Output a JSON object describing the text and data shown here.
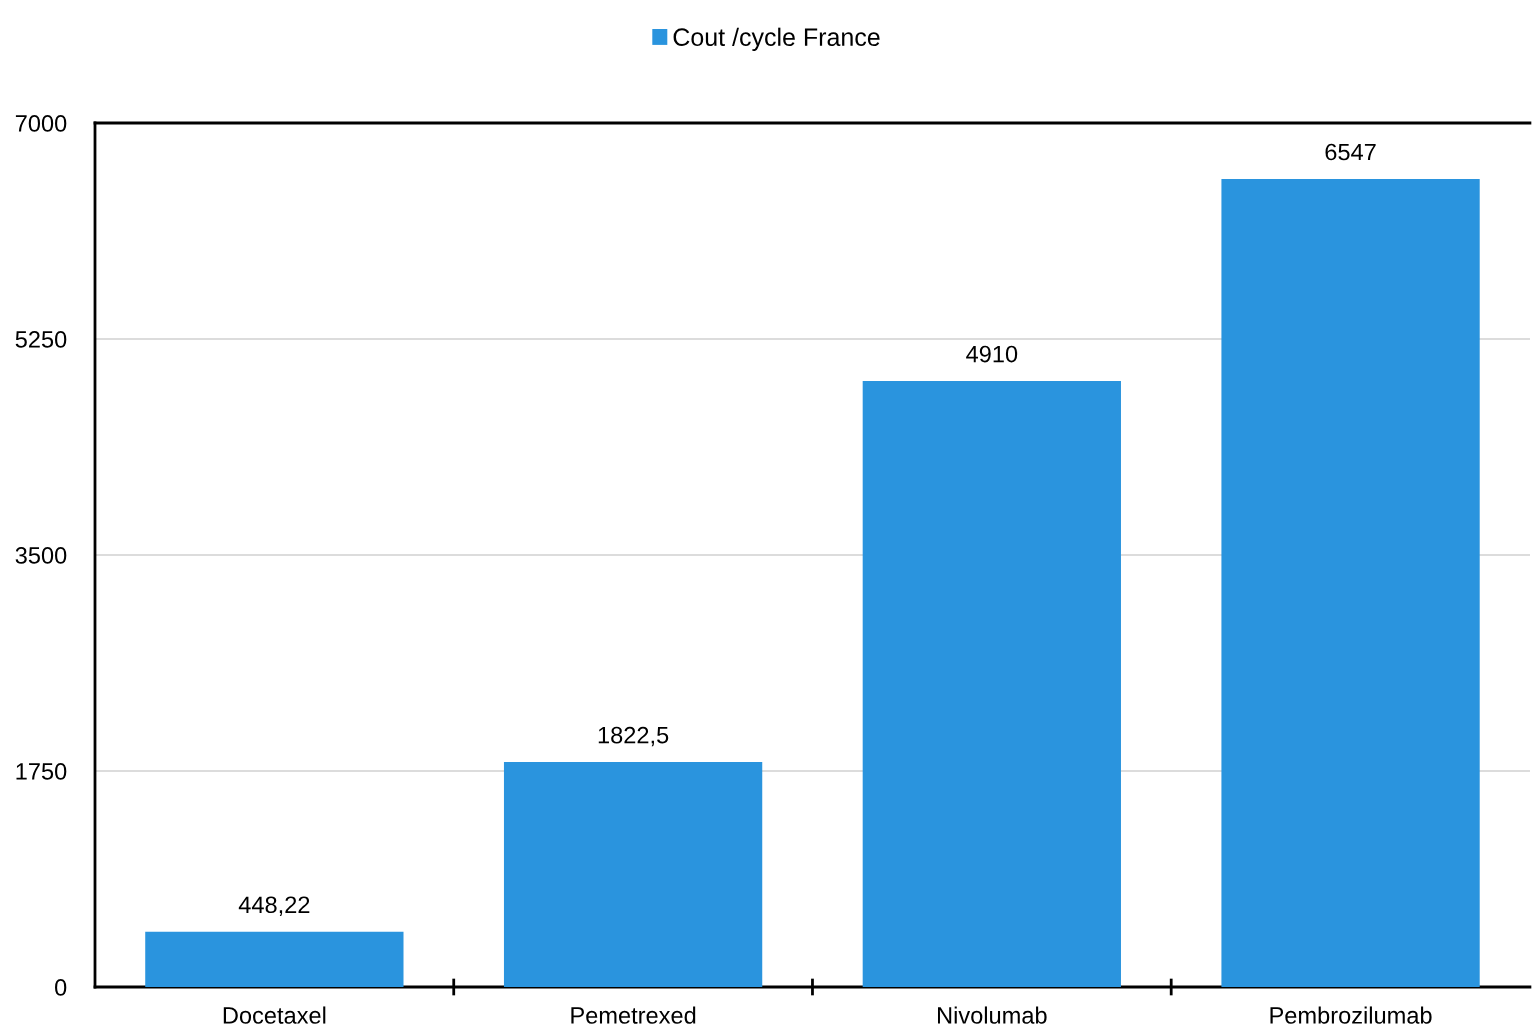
{
  "chart_data": {
    "type": "bar",
    "categories": [
      "Docetaxel",
      "Pemetrexed",
      "Nivolumab",
      "Pembrozilumab"
    ],
    "series": [
      {
        "name": "Cout /cycle France",
        "color": "#2a94de",
        "values": [
          448.22,
          1822.5,
          4910,
          6547
        ],
        "value_labels": [
          "448,22",
          "1822,5",
          "4910",
          "6547"
        ]
      }
    ],
    "ylim": [
      0,
      7000
    ],
    "yticks": [
      0,
      1750,
      3500,
      5250,
      7000
    ],
    "grid": "y",
    "legend": "top"
  }
}
